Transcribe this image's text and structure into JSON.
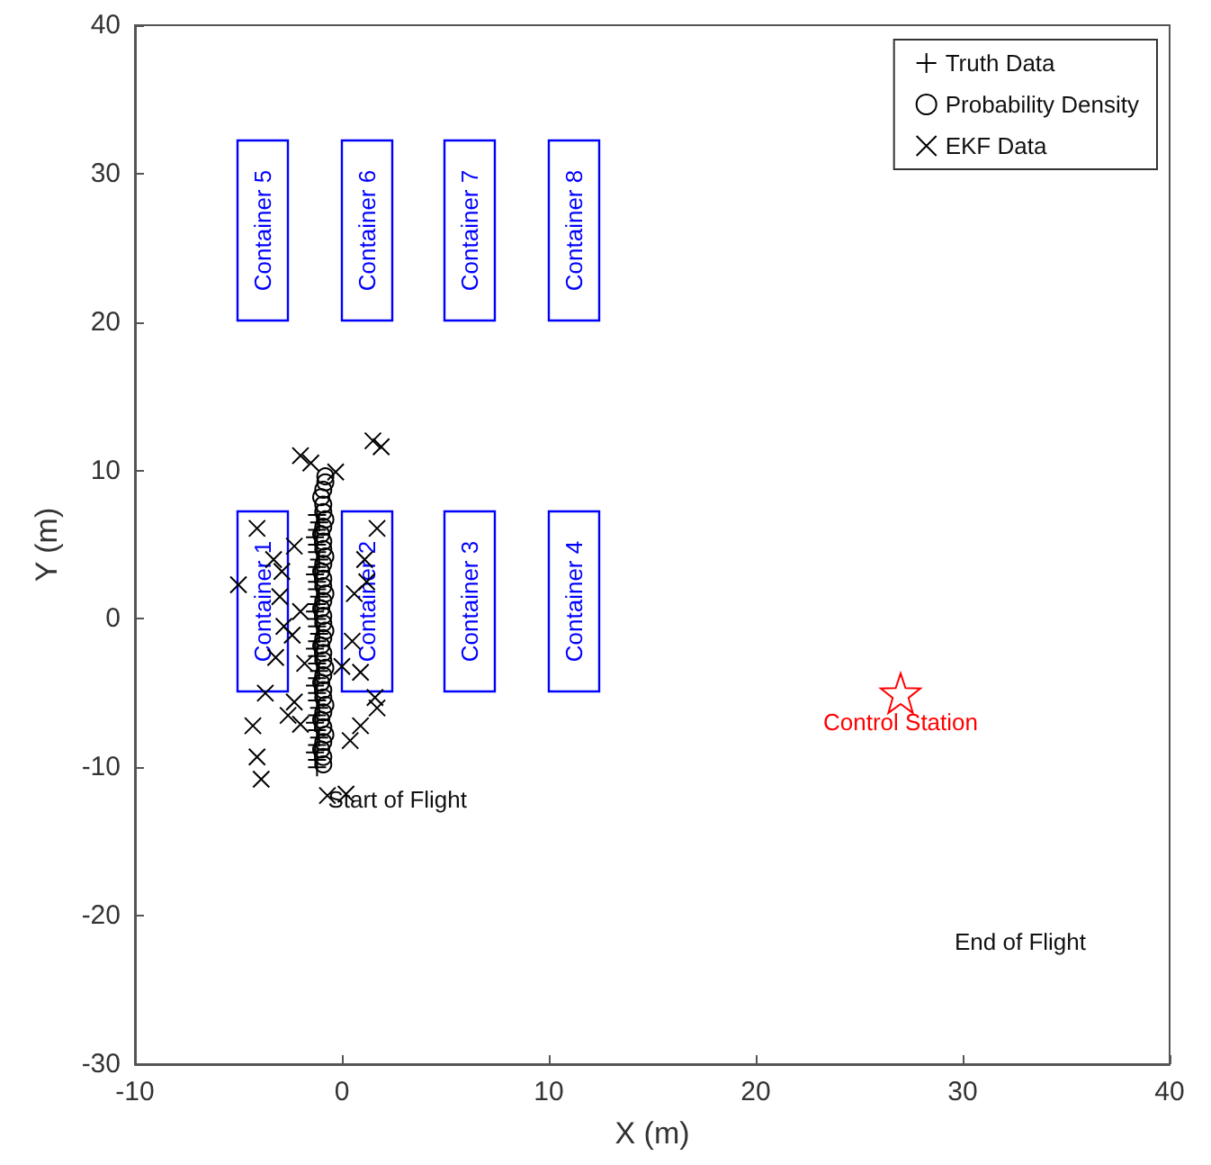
{
  "chart_data": {
    "type": "scatter",
    "xlabel": "X (m)",
    "ylabel": "Y (m)",
    "xlim": [
      -10,
      40
    ],
    "xticks": [
      -10,
      0,
      10,
      20,
      30,
      40
    ],
    "ylim": [
      -30,
      40
    ],
    "yticks": [
      -30,
      -20,
      -10,
      0,
      10,
      20,
      30,
      40
    ],
    "grid": false,
    "legend": "top right",
    "series": [
      {
        "name": "Truth Data",
        "color": "#000000",
        "marker": "plus",
        "x": [
          -1.2,
          -1.2,
          -1.3,
          -1.2,
          -1.1,
          -1.2,
          -1.3,
          -1.2,
          -1.1,
          -1.2,
          -1.2,
          -1.3,
          -1.2,
          -1.1,
          -1.2,
          -1.2,
          -1.3,
          -1.2,
          -1.1,
          -1.2,
          -1.2,
          -1.3,
          -1.2,
          -1.1,
          -1.2,
          -1.2,
          -1.3,
          -1.2,
          -1.1,
          -1.2,
          -1.2,
          -1.3,
          -1.2,
          -1.1,
          -1.2
        ],
        "values": [
          -10,
          -9.5,
          -9,
          -8.5,
          -8,
          -7.5,
          -7,
          -6.5,
          -6,
          -5.5,
          -5,
          -4.5,
          -4,
          -3.5,
          -3,
          -2.5,
          -2,
          -1.5,
          -1,
          -0.5,
          0,
          0.5,
          1,
          1.5,
          2,
          2.5,
          3,
          3.5,
          4,
          4.5,
          5,
          5.5,
          6,
          6.5,
          7
        ]
      },
      {
        "name": "Probability Density",
        "color": "#000000",
        "marker": "circle",
        "x": [
          -0.9,
          -0.9,
          -1.0,
          -0.9,
          -0.8,
          -0.9,
          -1.0,
          -0.9,
          -0.8,
          -0.9,
          -0.9,
          -1.0,
          -0.9,
          -0.8,
          -0.9,
          -0.9,
          -1.0,
          -0.9,
          -0.8,
          -0.9,
          -0.9,
          -1.0,
          -0.9,
          -0.8,
          -0.9,
          -0.9,
          -1.0,
          -0.9,
          -0.8,
          -0.9,
          -0.9,
          -1.0,
          -0.9,
          -0.8,
          -0.9,
          -0.9,
          -1.0,
          -0.9,
          -0.8,
          -0.8
        ],
        "values": [
          -9.8,
          -9.3,
          -8.8,
          -8.3,
          -7.8,
          -7.3,
          -6.8,
          -6.3,
          -5.8,
          -5.3,
          -4.8,
          -4.3,
          -3.8,
          -3.3,
          -2.8,
          -2.3,
          -1.8,
          -1.3,
          -0.8,
          -0.3,
          0.2,
          0.7,
          1.2,
          1.7,
          2.2,
          2.7,
          3.2,
          3.7,
          4.2,
          4.7,
          5.2,
          5.7,
          6.2,
          6.7,
          7.2,
          7.7,
          8.2,
          8.7,
          9.2,
          9.6
        ]
      },
      {
        "name": "EKF Data",
        "color": "#000000",
        "marker": "cross",
        "x": [
          1.5,
          1.9,
          -2.0,
          -1.5,
          -0.3,
          -4.1,
          1.7,
          -3.3,
          -5.0,
          -2.3,
          1.1,
          -2.9,
          0.6,
          -2.8,
          -3.2,
          0.9,
          -3.7,
          1.6,
          -2.3,
          1.7,
          -4.3,
          -2.6,
          -2.0,
          0.9,
          0.4,
          -4.1,
          -3.9,
          -0.7,
          -2.4,
          0.0,
          0.2,
          -2.0,
          0.5,
          -3.0,
          1.2,
          -1.8
        ],
        "values": [
          12.0,
          11.6,
          11.0,
          10.5,
          9.9,
          6.1,
          6.1,
          4.0,
          2.3,
          4.9,
          4.0,
          3.2,
          1.7,
          -0.5,
          -2.6,
          -3.6,
          -5.0,
          -5.3,
          -5.6,
          -6.0,
          -7.2,
          -6.5,
          -7.1,
          -7.2,
          -8.2,
          -9.3,
          -10.8,
          -11.9,
          -1.1,
          -3.2,
          -11.8,
          0.5,
          -1.5,
          1.5,
          2.5,
          -3.0
        ]
      },
      {
        "name": "Control Station",
        "color": "#ff0000",
        "marker": "star",
        "x": [
          27
        ],
        "values": [
          -5
        ]
      }
    ],
    "annotations": [
      {
        "text": "Start of Flight",
        "x": -1.2,
        "y": -10
      },
      "Container 1",
      "Container 2",
      "Container 3",
      "Container 4",
      "Container 5",
      "Container 6",
      "Container 7",
      "Container 8",
      "End of Flight"
    ]
  }
}
